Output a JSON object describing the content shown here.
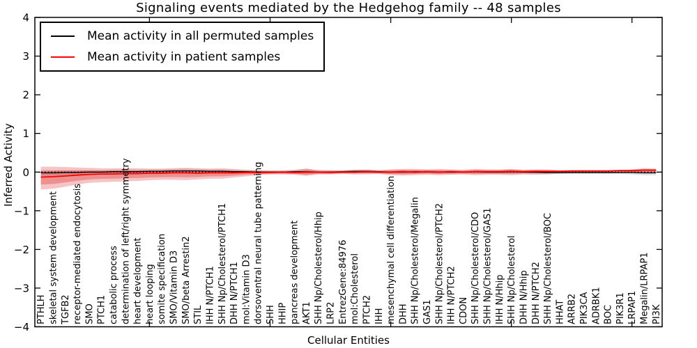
{
  "colors": {
    "black_line": "#000000",
    "red_line": "#ff0000",
    "red_band": "#e03c3c",
    "gray_band": "#bbbbbb",
    "frame": "#000000"
  },
  "legend": {
    "items": [
      {
        "label": "Mean activity in all permuted samples",
        "color": "#000000"
      },
      {
        "label": "Mean activity in patient samples",
        "color": "#ff0000"
      }
    ]
  },
  "chart_data": {
    "type": "line",
    "title": "Signaling events mediated by the Hedgehog family -- 48 samples",
    "xlabel": "Cellular Entities",
    "ylabel": "Inferred Activity",
    "ylim": [
      -4,
      4
    ],
    "yticks": [
      4,
      3,
      2,
      1,
      0,
      -1,
      -2,
      -3,
      -4
    ],
    "grid": false,
    "legend_position": "upper left",
    "zero_line": true,
    "x_major_tick_indices": [
      9,
      19,
      29,
      39,
      49
    ],
    "categories": [
      "PTHLH",
      "skeletal system development",
      "TGFB2",
      "receptor-mediated endocytosis",
      "SMO",
      "PTCH1",
      "catabolic process",
      "determination of left/right symmetry",
      "heart development",
      "heart looping",
      "somite specification",
      "SMO/Vitamin D3",
      "SMO/beta Arrestin2",
      "STIL",
      "IHH N/PTCH1",
      "SHH Np/Cholesterol/PTCH1",
      "DHH N/PTCH1",
      "mol:Vitamin D3",
      "dorsoventral neural tube patterning",
      "SHH",
      "HHIP",
      "pancreas development",
      "AKT1",
      "SHH Np/Cholesterol/Hhip",
      "LRP2",
      "EntrezGene:84976",
      "mol:Cholesterol",
      "PTCH2",
      "IHH",
      "mesenchymal cell differentiation",
      "DHH",
      "SHH Np/Cholesterol/Megalin",
      "GAS1",
      "SHH Np/Cholesterol/PTCH2",
      "IHH N/PTCH2",
      "CDON",
      "SHH Np/Cholesterol/CDO",
      "SHH Np/Cholesterol/GAS1",
      "IHH N/Hhip",
      "SHH Np/Cholesterol",
      "DHH N/Hhip",
      "DHH N/PTCH2",
      "SHH Np/Cholesterol/BOC",
      "HHAT",
      "ARRB2",
      "PIK3CA",
      "ADRBK1",
      "BOC",
      "PIK3R1",
      "LRPAP1",
      "Megalin/LRPAP1",
      "PI3K"
    ],
    "series": [
      {
        "name": "Mean activity in all permuted samples",
        "color": "#000000",
        "values": [
          -0.02,
          -0.02,
          -0.01,
          -0.01,
          0.0,
          0.0,
          0.01,
          0.01,
          0.01,
          0.02,
          0.02,
          0.03,
          0.03,
          0.03,
          0.02,
          0.02,
          0.01,
          0.01,
          0.0,
          0.0,
          0.0,
          0.01,
          0.01,
          0.0,
          0.0,
          0.01,
          0.02,
          0.02,
          0.01,
          0.0,
          0.0,
          0.01,
          0.01,
          0.0,
          0.0,
          0.0,
          0.01,
          0.0,
          0.0,
          0.01,
          0.0,
          0.0,
          -0.01,
          -0.01,
          -0.01,
          -0.01,
          -0.01,
          -0.01,
          -0.01,
          -0.01,
          -0.02,
          -0.02
        ]
      },
      {
        "name": "Mean activity in patient samples",
        "color": "#ff0000",
        "values": [
          -0.13,
          -0.12,
          -0.1,
          -0.08,
          -0.06,
          -0.05,
          -0.05,
          -0.04,
          -0.04,
          -0.03,
          -0.03,
          -0.02,
          -0.02,
          -0.03,
          -0.02,
          -0.02,
          -0.02,
          -0.01,
          -0.01,
          -0.01,
          0.0,
          -0.01,
          0.0,
          0.0,
          -0.01,
          0.0,
          0.0,
          0.01,
          0.0,
          0.0,
          0.01,
          0.0,
          0.01,
          0.0,
          0.01,
          0.0,
          0.01,
          0.01,
          0.01,
          0.02,
          0.01,
          0.02,
          0.02,
          0.02,
          0.03,
          0.03,
          0.03,
          0.03,
          0.04,
          0.04,
          0.05,
          0.05
        ]
      }
    ],
    "bands": [
      {
        "name": "permuted-samples-range",
        "color": "#bbbbbb",
        "opacity": 0.5,
        "upper": [
          0.05,
          0.05,
          0.05,
          0.05,
          0.05,
          0.05,
          0.06,
          0.07,
          0.06,
          0.07,
          0.07,
          0.08,
          0.09,
          0.08,
          0.07,
          0.07,
          0.06,
          0.05,
          0.04,
          0.04,
          0.04,
          0.06,
          0.09,
          0.05,
          0.04,
          0.05,
          0.07,
          0.07,
          0.05,
          0.05,
          0.06,
          0.06,
          0.06,
          0.05,
          0.05,
          0.04,
          0.06,
          0.05,
          0.05,
          0.07,
          0.05,
          0.05,
          0.03,
          0.03,
          0.03,
          0.03,
          0.03,
          0.03,
          0.03,
          0.04,
          0.04,
          0.04
        ],
        "lower": [
          -0.09,
          -0.09,
          -0.07,
          -0.07,
          -0.05,
          -0.05,
          -0.04,
          -0.05,
          -0.04,
          -0.03,
          -0.03,
          -0.02,
          -0.03,
          -0.02,
          -0.03,
          -0.03,
          -0.04,
          -0.03,
          -0.04,
          -0.04,
          -0.04,
          -0.04,
          -0.07,
          -0.05,
          -0.04,
          -0.03,
          -0.03,
          -0.03,
          -0.03,
          -0.05,
          -0.06,
          -0.04,
          -0.04,
          -0.05,
          -0.05,
          -0.04,
          -0.04,
          -0.05,
          -0.05,
          -0.05,
          -0.05,
          -0.05,
          -0.05,
          -0.05,
          -0.05,
          -0.05,
          -0.05,
          -0.05,
          -0.05,
          -0.06,
          -0.08,
          -0.08
        ]
      },
      {
        "name": "patient-samples-range",
        "color": "#e03c3c",
        "opacity": 0.3,
        "inner_scale": 0.6,
        "inner_opacity": 0.38,
        "upper": [
          0.14,
          0.14,
          0.13,
          0.12,
          0.11,
          0.1,
          0.1,
          0.1,
          0.1,
          0.09,
          0.09,
          0.1,
          0.11,
          0.1,
          0.09,
          0.1,
          0.08,
          0.06,
          0.05,
          0.04,
          0.04,
          0.05,
          0.09,
          0.05,
          0.05,
          0.04,
          0.05,
          0.06,
          0.05,
          0.07,
          0.08,
          0.08,
          0.07,
          0.08,
          0.07,
          0.06,
          0.08,
          0.07,
          0.07,
          0.08,
          0.06,
          0.07,
          0.07,
          0.05,
          0.05,
          0.05,
          0.05,
          0.05,
          0.05,
          0.07,
          0.1,
          0.09
        ],
        "lower": [
          -0.45,
          -0.43,
          -0.38,
          -0.32,
          -0.28,
          -0.26,
          -0.25,
          -0.24,
          -0.23,
          -0.21,
          -0.2,
          -0.2,
          -0.21,
          -0.19,
          -0.17,
          -0.17,
          -0.14,
          -0.11,
          -0.08,
          -0.06,
          -0.06,
          -0.07,
          -0.1,
          -0.06,
          -0.06,
          -0.05,
          -0.06,
          -0.06,
          -0.05,
          -0.08,
          -0.09,
          -0.08,
          -0.07,
          -0.08,
          -0.07,
          -0.06,
          -0.08,
          -0.07,
          -0.07,
          -0.08,
          -0.06,
          -0.07,
          -0.06,
          -0.04,
          -0.03,
          -0.03,
          -0.03,
          -0.03,
          -0.02,
          -0.02,
          -0.03,
          -0.02
        ]
      }
    ]
  }
}
